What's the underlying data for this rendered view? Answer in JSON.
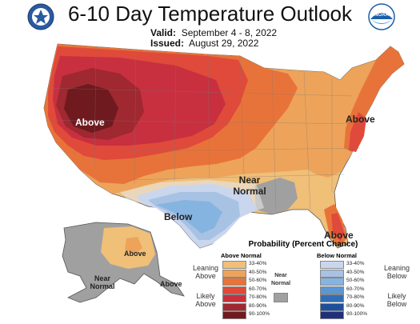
{
  "header": {
    "title": "6-10 Day Temperature Outlook",
    "valid_label": "Valid:",
    "valid_value": "September 4 - 8, 2022",
    "issued_label": "Issued:",
    "issued_value": "August 29, 2022",
    "noaa_logo_text": "NOAA"
  },
  "map": {
    "region_labels": [
      "Above",
      "Near Normal",
      "Below",
      "Above",
      "Above",
      "Above",
      "Near Normal",
      "Above"
    ]
  },
  "legend": {
    "title": "Probability (Percent Chance)",
    "above_header": "Above Normal",
    "below_header": "Below Normal",
    "near_header": "Near Normal",
    "leaning_above": "Leaning Above",
    "likely_above": "Likely Above",
    "leaning_below": "Leaning Below",
    "likely_below": "Likely Below",
    "ranges": [
      "33-40%",
      "40-50%",
      "50-60%",
      "60-70%",
      "70-80%",
      "80-90%",
      "90-100%"
    ],
    "above_colors": [
      "#f0bf78",
      "#eda35a",
      "#e8733a",
      "#e04a3a",
      "#c83040",
      "#a02830",
      "#6e1a1e"
    ],
    "below_colors": [
      "#c9d6ee",
      "#a8c2e4",
      "#86b4e0",
      "#5b97d4",
      "#2f6fba",
      "#1e4f9c",
      "#1f2f7a"
    ],
    "near_color": "#a0a0a0"
  }
}
